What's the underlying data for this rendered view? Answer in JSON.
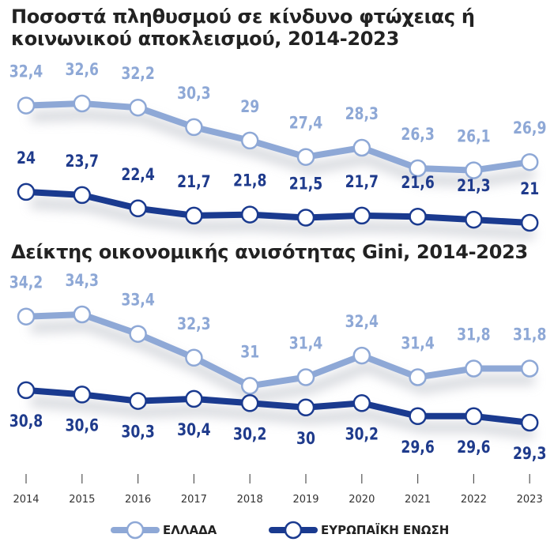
{
  "colors": {
    "greece": "#8ea8d6",
    "eu": "#1a3a8f",
    "greece_label": "#8ea8d6",
    "eu_label": "#1f3b8c",
    "tick_label": "#333333"
  },
  "chart_data": [
    {
      "type": "line",
      "title": "Ποσοστά πληθυσμού σε κίνδυνο φτώχειας ή κοινωνικού αποκλεισμού, 2014-2023",
      "x": [
        2014,
        2015,
        2016,
        2017,
        2018,
        2019,
        2020,
        2021,
        2022,
        2023
      ],
      "series": [
        {
          "name": "ΕΛΛΑΔΑ",
          "values": [
            32.4,
            32.6,
            32.2,
            30.3,
            29,
            27.4,
            28.3,
            26.3,
            26.1,
            26.9
          ],
          "labels": [
            "32,4",
            "32,6",
            "32,2",
            "30,3",
            "29",
            "27,4",
            "28,3",
            "26,3",
            "26,1",
            "26,9"
          ]
        },
        {
          "name": "ΕΥΡΩΠΑΪΚΗ ΕΝΩΣΗ",
          "values": [
            24,
            23.7,
            22.4,
            21.7,
            21.8,
            21.5,
            21.7,
            21.6,
            21.3,
            21
          ],
          "labels": [
            "24",
            "23,7",
            "22,4",
            "21,7",
            "21,8",
            "21,5",
            "21,7",
            "21,6",
            "21,3",
            "21"
          ]
        }
      ],
      "grid": false,
      "legend": "bottom"
    },
    {
      "type": "line",
      "title": "Δείκτης οικονομικής ανισότητας Gini, 2014-2023",
      "x": [
        2014,
        2015,
        2016,
        2017,
        2018,
        2019,
        2020,
        2021,
        2022,
        2023
      ],
      "series": [
        {
          "name": "ΕΛΛΑΔΑ",
          "values": [
            34.2,
            34.3,
            33.4,
            32.3,
            31,
            31.4,
            32.4,
            31.4,
            31.8,
            31.8
          ],
          "labels": [
            "34,2",
            "34,3",
            "33,4",
            "32,3",
            "31",
            "31,4",
            "32,4",
            "31,4",
            "31,8",
            "31,8"
          ]
        },
        {
          "name": "ΕΥΡΩΠΑΪΚΗ ΕΝΩΣΗ",
          "values": [
            30.8,
            30.6,
            30.3,
            30.4,
            30.2,
            30,
            30.2,
            29.6,
            29.6,
            29.3
          ],
          "labels": [
            "30,8",
            "30,6",
            "30,3",
            "30,4",
            "30,2",
            "30",
            "30,2",
            "29,6",
            "29,6",
            "29,3"
          ]
        }
      ],
      "grid": false,
      "legend": "bottom"
    }
  ],
  "x_ticks": [
    "2014",
    "2015",
    "2016",
    "2017",
    "2018",
    "2019",
    "2020",
    "2021",
    "2022",
    "2023"
  ],
  "legend": [
    {
      "label": "ΕΛΛΑΔΑ",
      "color_key": "greece"
    },
    {
      "label": "ΕΥΡΩΠΑΪΚΗ ΕΝΩΣΗ",
      "color_key": "eu"
    }
  ]
}
